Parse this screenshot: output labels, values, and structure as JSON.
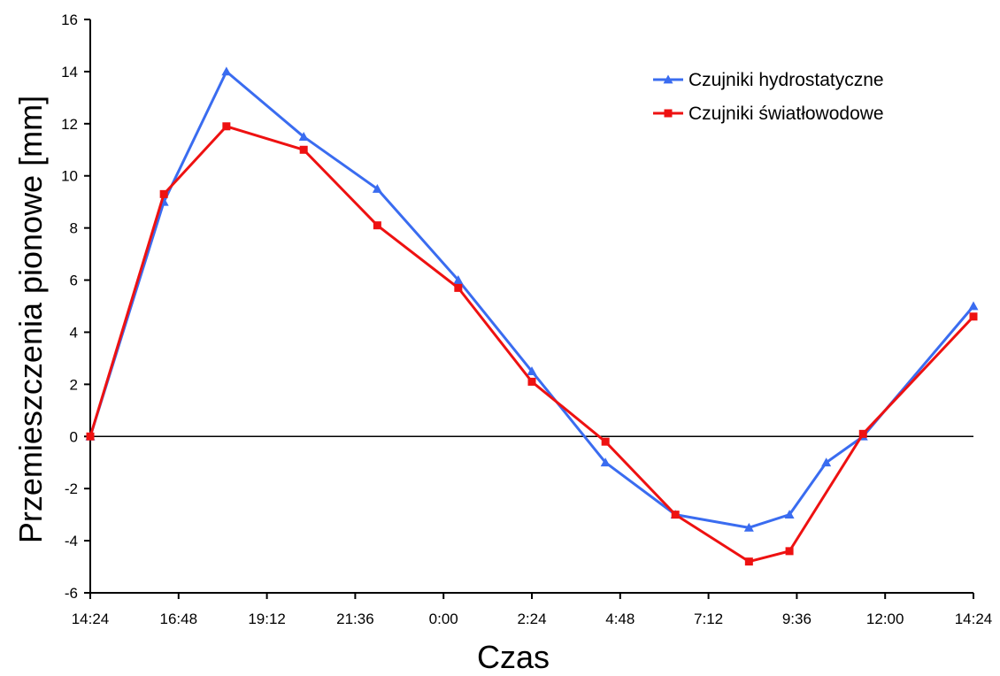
{
  "chart_data": {
    "type": "line",
    "title": "",
    "xlabel": "Czas",
    "ylabel": "Przemieszczenia pionowe [mm]",
    "ylim": [
      -6,
      16
    ],
    "y_ticks": [
      -6,
      -4,
      -2,
      0,
      2,
      4,
      6,
      8,
      10,
      12,
      14,
      16
    ],
    "x_range_hours": [
      0,
      24
    ],
    "x_ticks": [
      "14:24",
      "16:48",
      "19:12",
      "21:36",
      "0:00",
      "2:24",
      "4:48",
      "7:12",
      "9:36",
      "12:00",
      "14:24"
    ],
    "x_tick_hours": [
      0,
      2.4,
      4.8,
      7.2,
      9.6,
      12,
      14.4,
      16.8,
      19.2,
      21.6,
      24
    ],
    "grid": false,
    "zero_line": true,
    "legend_position": "top-right",
    "series": [
      {
        "name": "Czujniki hydrostatyczne",
        "color": "#3a6cf0",
        "marker": "triangle",
        "x": [
          0,
          2.0,
          3.7,
          5.8,
          7.8,
          10.0,
          12.0,
          14.0,
          15.9,
          17.9,
          19.0,
          20.0,
          21.0,
          24.0
        ],
        "values": [
          0,
          9.0,
          14.0,
          11.5,
          9.5,
          6.0,
          2.5,
          -1.0,
          -3.0,
          -3.5,
          -3.0,
          -1.0,
          0,
          5.0
        ]
      },
      {
        "name": "Czujniki światłowodowe",
        "color": "#ee1111",
        "marker": "square",
        "x": [
          0,
          2.0,
          3.7,
          5.8,
          7.8,
          10.0,
          12.0,
          14.0,
          15.9,
          17.9,
          19.0,
          21.0,
          24.0
        ],
        "values": [
          0,
          9.3,
          11.9,
          11.0,
          8.1,
          5.7,
          2.1,
          -0.2,
          -3.0,
          -4.8,
          -4.4,
          0.1,
          4.6
        ]
      }
    ]
  }
}
